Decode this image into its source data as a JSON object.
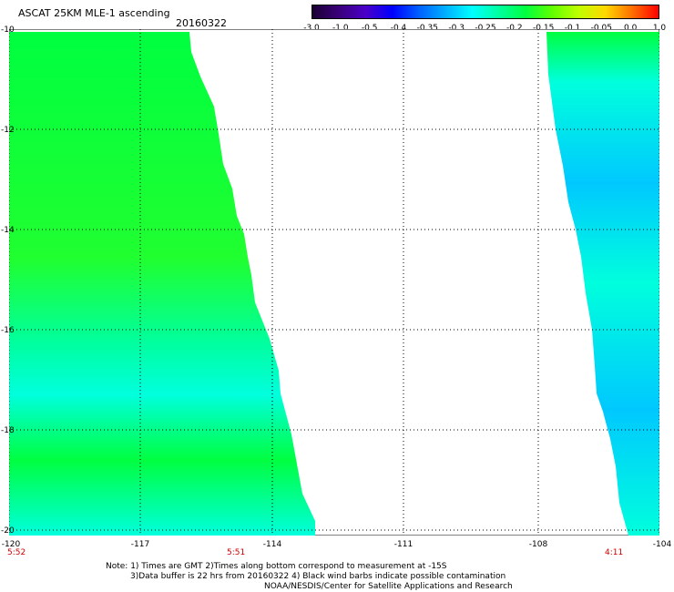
{
  "header": {
    "title": "ASCAT 25KM MLE-1 ascending",
    "date": "20160322"
  },
  "colorbar": {
    "labels": [
      "-3.0",
      "-1.0",
      "-0.5",
      "-0.4",
      "-0.35",
      "-0.3",
      "-0.25",
      "-0.2",
      "-0.15",
      "-0.1",
      "-0.05",
      "0.0",
      "1.0"
    ],
    "colors": [
      "#1a0033",
      "#3a007a",
      "#4a00c8",
      "#0000ff",
      "#0060ff",
      "#00b0ff",
      "#00ffff",
      "#00ffa0",
      "#00ff40",
      "#60ff00",
      "#c0ff00",
      "#ffd800",
      "#ff7000",
      "#ff0000"
    ]
  },
  "axes": {
    "y_labels": [
      "-10",
      "-12",
      "-14",
      "-16",
      "-18",
      "-20"
    ],
    "x_labels": [
      "-120",
      "-117",
      "-114",
      "-111",
      "-108",
      "-104"
    ]
  },
  "swath_times": [
    "5:52",
    "5:51",
    "4:11"
  ],
  "notes": {
    "line1": "Note: 1) Times are GMT 2)Times along bottom correspond to measurement at -15S",
    "line2": "3)Data buffer is 22 hrs from 20160322 4) Black wind barbs indicate possible contamination",
    "line3": "NOAA/NESDIS/Center for Satellite Applications and Research"
  },
  "palette": {
    "green": "#00ff40",
    "green_light": "#20ff30",
    "cyan_green": "#00ffa0",
    "cyan": "#00ffdd",
    "light_blue": "#00c8ff",
    "blue": "#0080ff"
  }
}
